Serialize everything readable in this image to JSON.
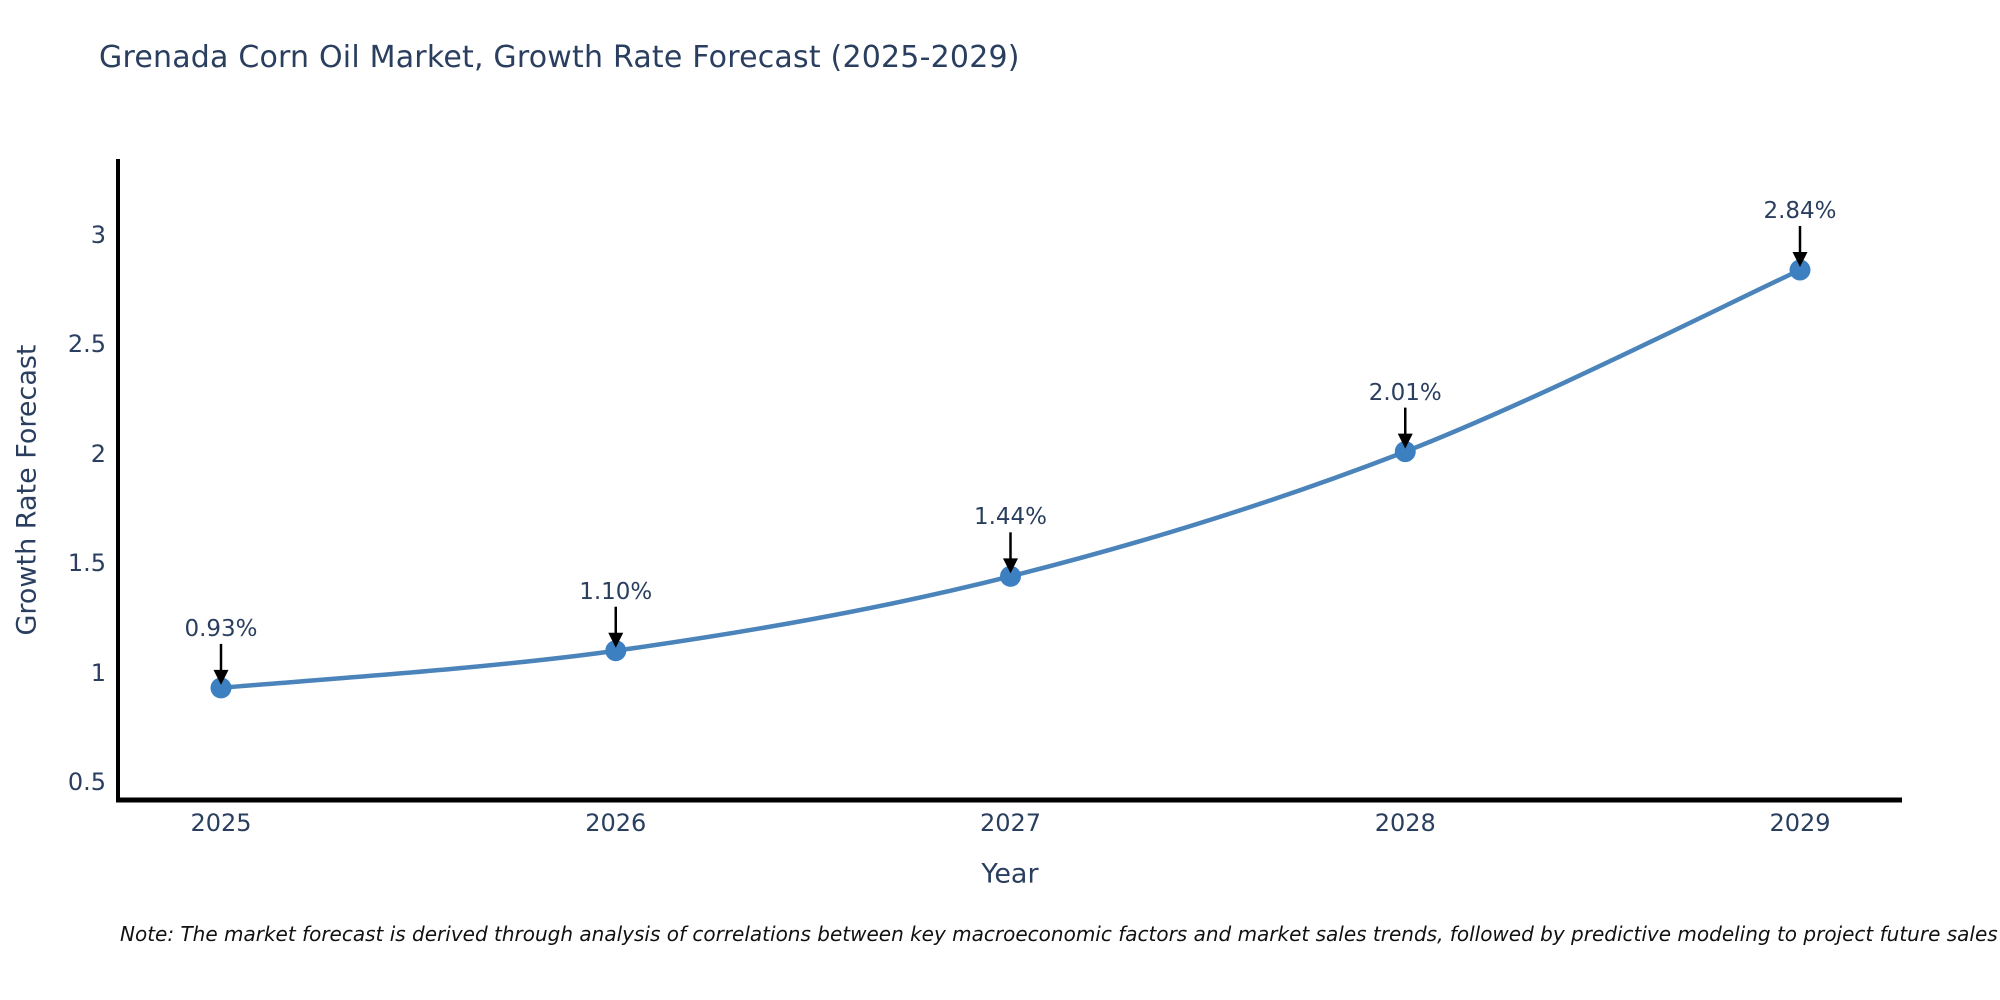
{
  "chart_data": {
    "type": "line",
    "title": "Grenada Corn Oil Market, Growth Rate Forecast (2025-2029)",
    "xlabel": "Year",
    "ylabel": "Growth Rate Forecast",
    "x": [
      2025,
      2026,
      2027,
      2028,
      2029
    ],
    "x_tick_labels": [
      "2025",
      "2026",
      "2027",
      "2028",
      "2029"
    ],
    "series": [
      {
        "name": "Growth Rate Forecast",
        "values": [
          0.93,
          1.1,
          1.44,
          2.01,
          2.84
        ],
        "point_labels": [
          "0.93%",
          "1.10%",
          "1.44%",
          "2.01%",
          "2.84%"
        ]
      }
    ],
    "y_ticks": [
      0.5,
      1,
      1.5,
      2,
      2.5,
      3
    ],
    "y_tick_labels": [
      "0.5",
      "1",
      "1.5",
      "2",
      "2.5",
      "3"
    ],
    "ylim": [
      0.41,
      3.35
    ],
    "grid": false,
    "legend": null,
    "line_smoothing": "spline",
    "annotations": "value labels with downward arrows above each point"
  },
  "note": "Note: The market forecast is derived through analysis of correlations between key macroeconomic factors and market sales trends, followed by predictive modeling to project future sales",
  "colors": {
    "title_text": "#2a3f5f",
    "tick_text": "#2a3f5f",
    "line": "#4a84ba",
    "marker": "#3c80c2",
    "axis": "#000000",
    "arrow": "#000000",
    "note_text": "#111111",
    "background": "#ffffff"
  }
}
